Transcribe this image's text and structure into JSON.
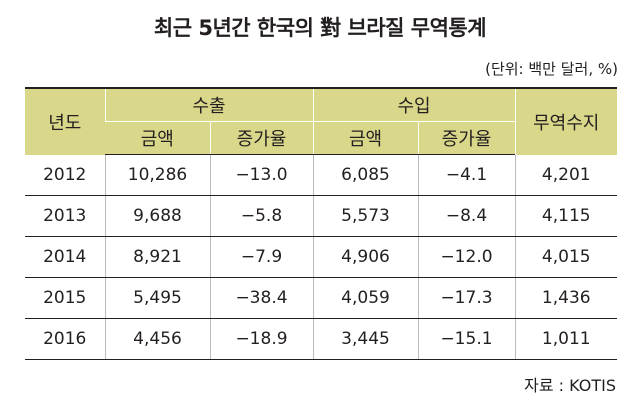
{
  "title": "최근 5년간 한국의 對 브라질 무역통계",
  "unit": "(단위: 백만 달러, %)",
  "table": {
    "header": {
      "year": "년도",
      "export": "수출",
      "import": "수입",
      "balance": "무역수지",
      "sub": [
        "금액",
        "증가율",
        "금액",
        "증가율"
      ]
    },
    "rows": [
      [
        "2012",
        "10,286",
        "−13.0",
        "6,085",
        "−4.1",
        "4,201"
      ],
      [
        "2013",
        "9,688",
        "−5.8",
        "5,573",
        "−8.4",
        "4,115"
      ],
      [
        "2014",
        "8,921",
        "−7.9",
        "4,906",
        "−12.0",
        "4,015"
      ],
      [
        "2015",
        "5,495",
        "−38.4",
        "4,059",
        "−17.3",
        "1,436"
      ],
      [
        "2016",
        "4,456",
        "−18.9",
        "3,445",
        "−15.1",
        "1,011"
      ]
    ]
  },
  "source": "자료 : KOTIS"
}
